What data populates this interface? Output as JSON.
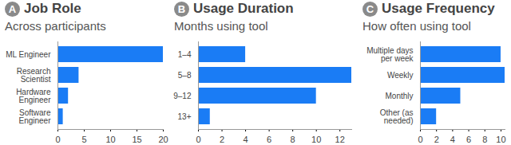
{
  "chart_data": [
    {
      "type": "bar",
      "orientation": "horizontal",
      "annotation": "A",
      "title": "Job Role",
      "subtitle": "Across participants",
      "categories": [
        "ML Engineer",
        "Research Scientist",
        "Hardware Engineer",
        "Software Engineer"
      ],
      "values": [
        20,
        4,
        2,
        1
      ],
      "color": "#1a7cf5",
      "xlim": [
        0,
        20
      ],
      "xticks": [
        0,
        5,
        10,
        15,
        20
      ],
      "grid": false
    },
    {
      "type": "bar",
      "orientation": "horizontal",
      "annotation": "B",
      "title": "Usage Duration",
      "subtitle": "Months using  tool",
      "categories": [
        "1–4",
        "5–8",
        "9–12",
        "13+"
      ],
      "values": [
        4,
        13,
        10,
        1
      ],
      "color": "#1a7cf5",
      "xlim": [
        0,
        13
      ],
      "xticks": [
        0,
        2,
        4,
        6,
        8,
        10,
        12
      ],
      "grid": false
    },
    {
      "type": "bar",
      "orientation": "horizontal",
      "annotation": "C",
      "title": "Usage Frequency",
      "subtitle": "How often using tool",
      "categories": [
        "Multiple days per week",
        "Weekly",
        "Monthly",
        "Other (as needed)"
      ],
      "values": [
        10,
        10.5,
        5,
        2
      ],
      "color": "#1a7cf5",
      "xlim": [
        0,
        10.5
      ],
      "xticks": [
        0,
        2,
        4,
        6,
        8,
        10
      ],
      "grid": false
    }
  ]
}
